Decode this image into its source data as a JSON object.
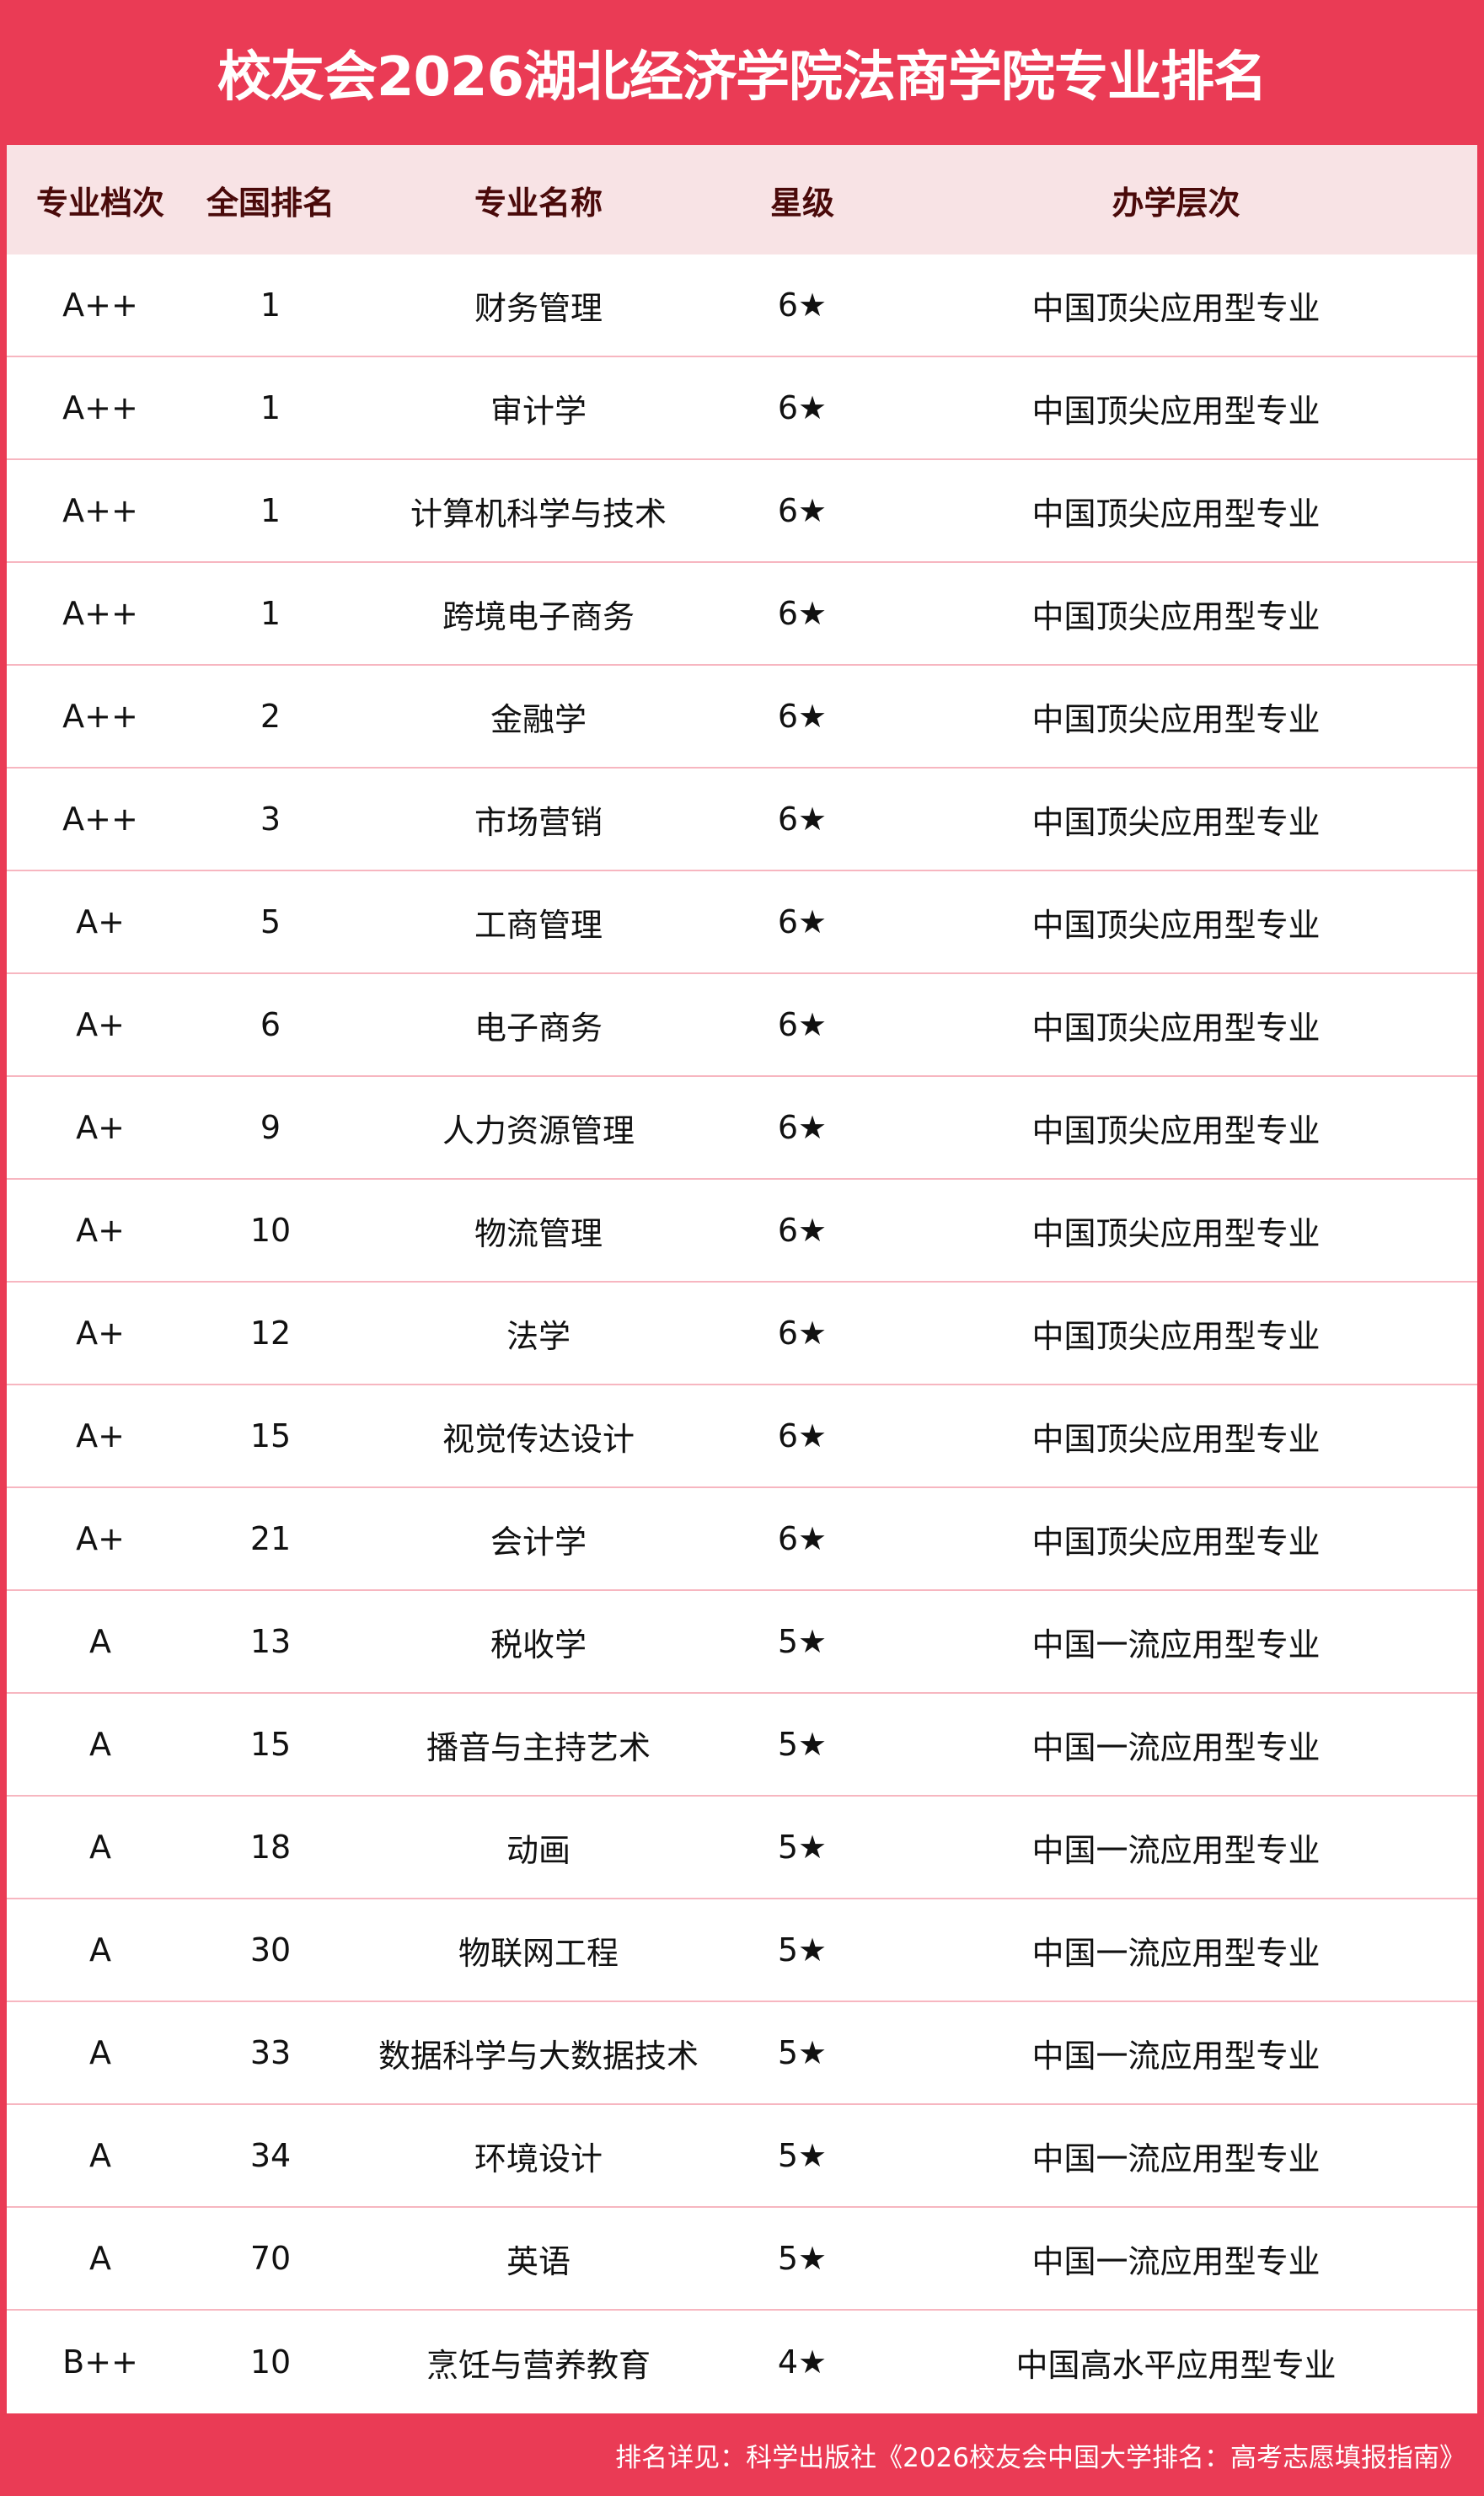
{
  "title": "校友会2026湖北经济学院法商学院专业排名",
  "headers": [
    "专业档次",
    "全国排名",
    "专业名称",
    "星级",
    "办学层次"
  ],
  "rows": [
    [
      "A++",
      "1",
      "财务管理",
      "6★",
      "中国顶尖应用型专业"
    ],
    [
      "A++",
      "1",
      "审计学",
      "6★",
      "中国顶尖应用型专业"
    ],
    [
      "A++",
      "1",
      "计算机科学与技术",
      "6★",
      "中国顶尖应用型专业"
    ],
    [
      "A++",
      "1",
      "跨境电子商务",
      "6★",
      "中国顶尖应用型专业"
    ],
    [
      "A++",
      "2",
      "金融学",
      "6★",
      "中国顶尖应用型专业"
    ],
    [
      "A++",
      "3",
      "市场营销",
      "6★",
      "中国顶尖应用型专业"
    ],
    [
      "A+",
      "5",
      "工商管理",
      "6★",
      "中国顶尖应用型专业"
    ],
    [
      "A+",
      "6",
      "电子商务",
      "6★",
      "中国顶尖应用型专业"
    ],
    [
      "A+",
      "9",
      "人力资源管理",
      "6★",
      "中国顶尖应用型专业"
    ],
    [
      "A+",
      "10",
      "物流管理",
      "6★",
      "中国顶尖应用型专业"
    ],
    [
      "A+",
      "12",
      "法学",
      "6★",
      "中国顶尖应用型专业"
    ],
    [
      "A+",
      "15",
      "视觉传达设计",
      "6★",
      "中国顶尖应用型专业"
    ],
    [
      "A+",
      "21",
      "会计学",
      "6★",
      "中国顶尖应用型专业"
    ],
    [
      "A",
      "13",
      "税收学",
      "5★",
      "中国一流应用型专业"
    ],
    [
      "A",
      "15",
      "播音与主持艺术",
      "5★",
      "中国一流应用型专业"
    ],
    [
      "A",
      "18",
      "动画",
      "5★",
      "中国一流应用型专业"
    ],
    [
      "A",
      "30",
      "物联网工程",
      "5★",
      "中国一流应用型专业"
    ],
    [
      "A",
      "33",
      "数据科学与大数据技术",
      "5★",
      "中国一流应用型专业"
    ],
    [
      "A",
      "34",
      "环境设计",
      "5★",
      "中国一流应用型专业"
    ],
    [
      "A",
      "70",
      "英语",
      "5★",
      "中国一流应用型专业"
    ],
    [
      "B++",
      "10",
      "烹饪与营养教育",
      "4★",
      "中国高水平应用型专业"
    ]
  ],
  "footer": "排名详见：科学出版社《2026校友会中国大学排名：高考志愿填报指南》",
  "colors": {
    "brand": "#ea3b55",
    "header_bg": "#f8e3e5",
    "header_text": "#4a0a0a",
    "row_divider": "#f7b6c0"
  }
}
